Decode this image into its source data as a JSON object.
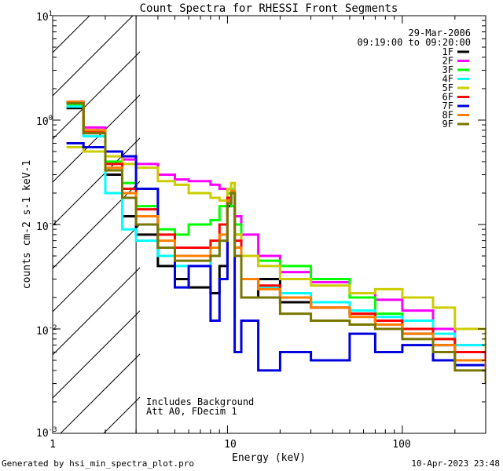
{
  "chart_data": {
    "type": "line",
    "title": "Count Spectra for RHESSI Front Segments",
    "xlabel": "Energy (keV)",
    "ylabel": "counts cm-2 s-1 keV-1",
    "xscale": "log",
    "yscale": "log",
    "xlim": [
      1,
      300
    ],
    "ylim": [
      0.001,
      10
    ],
    "x_tick_labels": [
      "1",
      "10",
      "100"
    ],
    "y_tick_labels": [
      {
        "base": "10",
        "exp": "-3"
      },
      {
        "base": "10",
        "exp": "-2"
      },
      {
        "base": "10",
        "exp": "-1"
      },
      {
        "base": "10",
        "exp": "0"
      },
      {
        "base": "10",
        "exp": "1"
      }
    ],
    "legend": {
      "date": "29-Mar-2006",
      "time_range": "09:19:00 to 09:20:00",
      "placement": "top-right"
    },
    "excluded_region": {
      "x_from": 1,
      "x_to": 3,
      "fill": "hatched"
    },
    "annotations": [
      "Includes Background",
      "Att A0, FDecim 1"
    ],
    "x_nodes": [
      1.2,
      1.5,
      2,
      2.5,
      3,
      4,
      5,
      6,
      8,
      9,
      10,
      10.5,
      11,
      12,
      15,
      20,
      30,
      50,
      70,
      100,
      150,
      200,
      300
    ],
    "series": [
      {
        "name": "1F",
        "color": "#000000",
        "values": [
          1.3,
          0.75,
          0.3,
          0.12,
          0.08,
          0.04,
          0.03,
          0.025,
          0.022,
          0.04,
          0.15,
          0.2,
          0.08,
          0.02,
          0.03,
          0.018,
          0.016,
          0.014,
          0.012,
          0.009,
          0.007,
          0.005,
          0.0035
        ]
      },
      {
        "name": "2F",
        "color": "#ff00ff",
        "values": [
          1.5,
          0.85,
          0.5,
          0.42,
          0.38,
          0.3,
          0.27,
          0.26,
          0.24,
          0.22,
          0.22,
          0.2,
          0.12,
          0.08,
          0.05,
          0.035,
          0.028,
          0.022,
          0.019,
          0.015,
          0.01,
          0.007,
          0.0045
        ]
      },
      {
        "name": "3F",
        "color": "#00ff00",
        "values": [
          1.4,
          0.8,
          0.4,
          0.25,
          0.15,
          0.09,
          0.08,
          0.1,
          0.11,
          0.15,
          0.2,
          0.15,
          0.1,
          0.05,
          0.045,
          0.04,
          0.03,
          0.02,
          0.014,
          0.01,
          0.008,
          0.006,
          0.004
        ]
      },
      {
        "name": "4F",
        "color": "#00ffff",
        "values": [
          1.35,
          0.7,
          0.2,
          0.09,
          0.07,
          0.05,
          0.04,
          0.04,
          0.05,
          0.07,
          0.18,
          0.22,
          0.08,
          0.03,
          0.025,
          0.022,
          0.018,
          0.015,
          0.013,
          0.012,
          0.009,
          0.007,
          0.0045
        ]
      },
      {
        "name": "5F",
        "color": "#cccc00",
        "values": [
          0.55,
          0.5,
          0.45,
          0.38,
          0.35,
          0.26,
          0.24,
          0.2,
          0.18,
          0.17,
          0.22,
          0.25,
          0.08,
          0.05,
          0.04,
          0.03,
          0.026,
          0.022,
          0.024,
          0.02,
          0.016,
          0.01,
          0.006
        ]
      },
      {
        "name": "6F",
        "color": "#ff0000",
        "values": [
          1.45,
          0.78,
          0.38,
          0.22,
          0.14,
          0.08,
          0.06,
          0.06,
          0.07,
          0.1,
          0.18,
          0.2,
          0.07,
          0.03,
          0.026,
          0.02,
          0.016,
          0.014,
          0.012,
          0.01,
          0.008,
          0.006,
          0.0045
        ]
      },
      {
        "name": "7F",
        "color": "#0000dd",
        "values": [
          0.6,
          0.55,
          0.5,
          0.45,
          0.22,
          0.06,
          0.025,
          0.04,
          0.012,
          0.03,
          0.16,
          0.2,
          0.006,
          0.012,
          0.004,
          0.006,
          0.005,
          0.009,
          0.006,
          0.007,
          0.005,
          0.0045,
          0.003
        ]
      },
      {
        "name": "8F",
        "color": "#ff7f00",
        "values": [
          1.5,
          0.8,
          0.35,
          0.2,
          0.12,
          0.07,
          0.05,
          0.05,
          0.06,
          0.08,
          0.17,
          0.21,
          0.06,
          0.03,
          0.024,
          0.02,
          0.016,
          0.013,
          0.011,
          0.009,
          0.007,
          0.005,
          0.0035
        ]
      },
      {
        "name": "9F",
        "color": "#777700",
        "values": [
          1.45,
          0.75,
          0.33,
          0.18,
          0.1,
          0.06,
          0.045,
          0.045,
          0.05,
          0.07,
          0.16,
          0.2,
          0.05,
          0.02,
          0.02,
          0.014,
          0.012,
          0.011,
          0.01,
          0.008,
          0.006,
          0.004,
          0.003
        ]
      }
    ]
  },
  "footer": {
    "generated_by": "Generated by hsi_min_spectra_plot.pro",
    "timestamp": "10-Apr-2023 23:48"
  }
}
